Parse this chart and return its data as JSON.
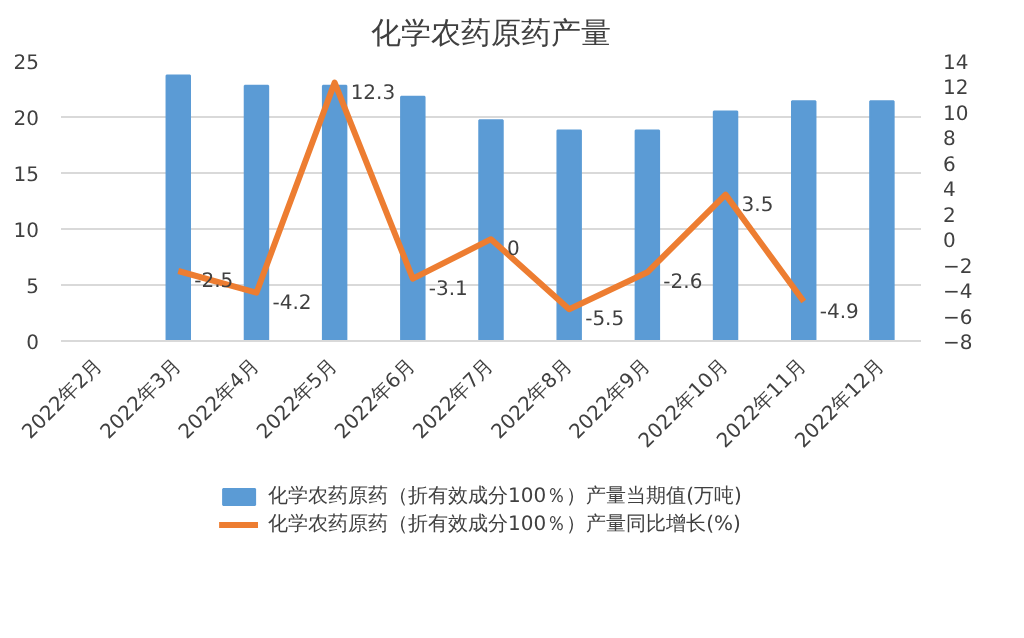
{
  "chart_data": {
    "type": "bar",
    "title": "化学农药原药产量",
    "categories": [
      "2022年2月",
      "2022年3月",
      "2022年4月",
      "2022年5月",
      "2022年6月",
      "2022年7月",
      "2022年8月",
      "2022年9月",
      "2022年10月",
      "2022年11月",
      "2022年12月"
    ],
    "series": [
      {
        "name": "化学农药原药（折有效成分100％）产量当期值(万吨)",
        "color": "#5b9bd5",
        "values": [
          null,
          23.7,
          22.8,
          22.8,
          21.8,
          19.7,
          18.8,
          18.8,
          20.5,
          21.4,
          21.4
        ]
      },
      {
        "name": "化学农药原药（折有效成分100％）产量同比增长(%)",
        "type": "line",
        "axis": "y2",
        "color": "#ed7d31",
        "values": [
          null,
          -2.5,
          -4.2,
          12.3,
          -3.1,
          0,
          -5.5,
          -2.6,
          3.5,
          -4.9,
          null
        ],
        "value_labels": [
          null,
          "-2.5",
          "-4.2",
          "12.3",
          "-3.1",
          "0",
          "-5.5",
          "-2.6",
          "3.5",
          "-4.9",
          null
        ]
      }
    ],
    "ylim": [
      0,
      25
    ],
    "yticks": [
      0,
      5,
      10,
      15,
      20,
      25
    ],
    "y2lim": [
      -8,
      14
    ],
    "y2ticks": [
      -8,
      -6,
      -4,
      -2,
      0,
      2,
      4,
      6,
      8,
      10,
      12,
      14
    ],
    "grid": "y",
    "legend": "bottom"
  }
}
